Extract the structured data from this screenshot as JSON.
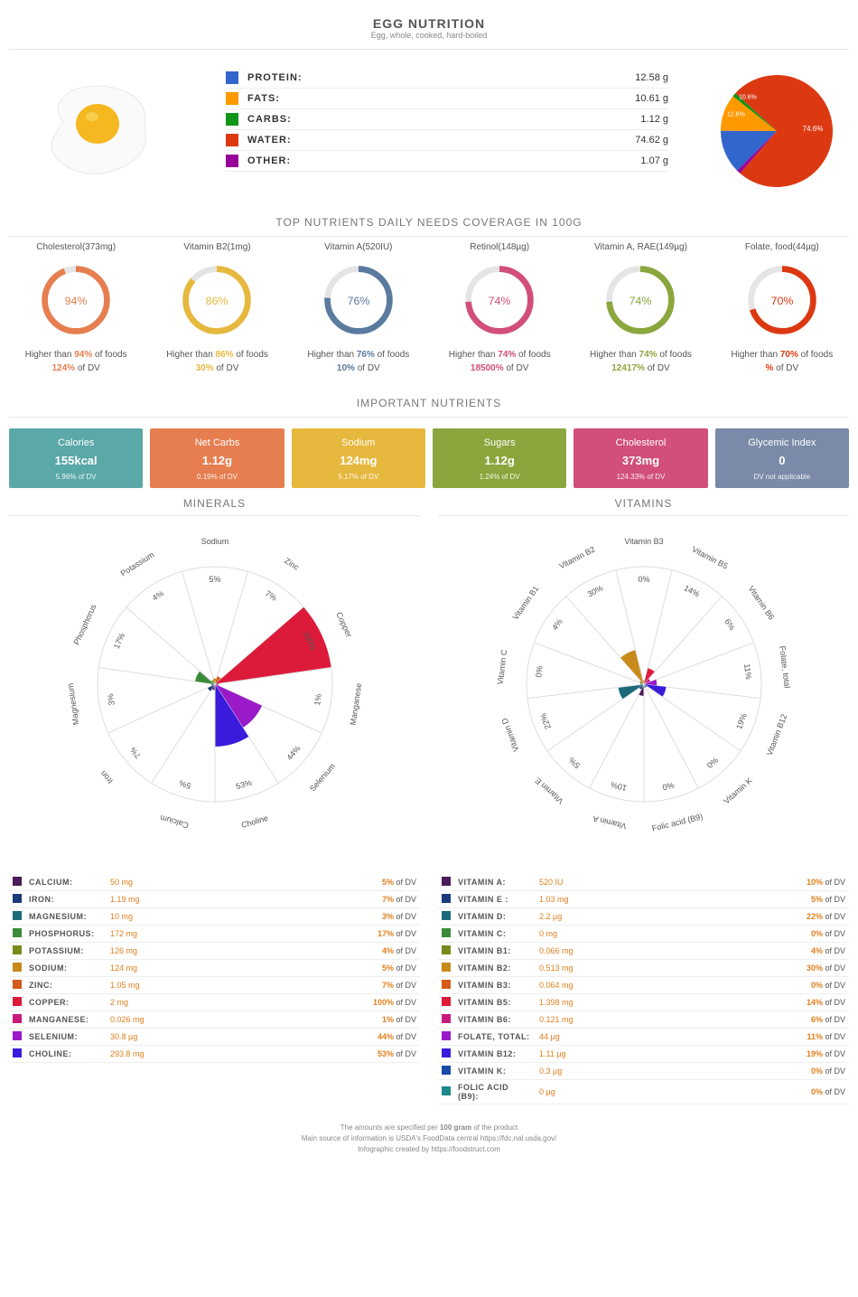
{
  "title": "EGG NUTRITION",
  "subtitle": "Egg, whole, cooked, hard-boiled",
  "macros": [
    {
      "label": "PROTEIN:",
      "value": "12.58 g",
      "color": "#3366cc",
      "pct": 12.6
    },
    {
      "label": "FATS:",
      "value": "10.61 g",
      "color": "#ff9900",
      "pct": 10.6
    },
    {
      "label": "CARBS:",
      "value": "1.12 g",
      "color": "#109618",
      "pct": 1.1
    },
    {
      "label": "WATER:",
      "value": "74.62 g",
      "color": "#dc3912",
      "pct": 74.6
    },
    {
      "label": "OTHER:",
      "value": "1.07 g",
      "color": "#990099",
      "pct": 1.1
    }
  ],
  "pie_labels": [
    {
      "text": "10.6%",
      "angle": -42,
      "r": 48,
      "color": "#fff",
      "fs": 7
    },
    {
      "text": "12.6%",
      "angle": -70,
      "r": 48,
      "color": "#fff",
      "fs": 7
    },
    {
      "text": "74.6%",
      "angle": 90,
      "r": 40,
      "color": "#fff",
      "fs": 8
    }
  ],
  "rings_title": "TOP NUTRIENTS DAILY NEEDS COVERAGE IN 100G",
  "rings": [
    {
      "label": "Cholesterol(373mg)",
      "pct": 94,
      "color": "#e67e50",
      "dv": "124%"
    },
    {
      "label": "Vitamin B2(1mg)",
      "pct": 86,
      "color": "#e6b83d",
      "dv": "30%"
    },
    {
      "label": "Vitamin A(520IU)",
      "pct": 76,
      "color": "#5a7a9e",
      "dv": "10%"
    },
    {
      "label": "Retinol(148µg)",
      "pct": 74,
      "color": "#d14f7a",
      "dv": "18500%"
    },
    {
      "label": "Vitamin A, RAE(149µg)",
      "pct": 74,
      "color": "#8ba63d",
      "dv": "12417%"
    },
    {
      "label": "Folate, food(44µg)",
      "pct": 70,
      "color": "#dc3912",
      "dv": "%"
    }
  ],
  "ring_below_prefix": "Higher than ",
  "ring_below_suffix": " of foods",
  "ring_dv_suffix": " of DV",
  "important_title": "IMPORTANT NUTRIENTS",
  "cards": [
    {
      "title": "Calories",
      "value": "155kcal",
      "sub": "5.96% of DV",
      "bg": "#5aa8a8"
    },
    {
      "title": "Net Carbs",
      "value": "1.12g",
      "sub": "0.19% of DV",
      "bg": "#e67e50"
    },
    {
      "title": "Sodium",
      "value": "124mg",
      "sub": "5.17% of DV",
      "bg": "#e6b83d"
    },
    {
      "title": "Sugars",
      "value": "1.12g",
      "sub": "1.24% of DV",
      "bg": "#8ba63d"
    },
    {
      "title": "Cholesterol",
      "value": "373mg",
      "sub": "124.33% of DV",
      "bg": "#d14f7a"
    },
    {
      "title": "Glycemic Index",
      "value": "0",
      "sub": "DV not applicable",
      "bg": "#7a8aa8"
    }
  ],
  "wheels_title_left": "MINERALS",
  "wheels_title_right": "VITAMINS",
  "wheel_max_radius": 130,
  "wheel_bg": "#ffffff",
  "wheel_border": "#ddd",
  "minerals_wheel": [
    {
      "name": "Calcium",
      "pct": 5,
      "color": "#4a1a5a"
    },
    {
      "name": "Iron",
      "pct": 7,
      "color": "#1a3a7a"
    },
    {
      "name": "Magnesium",
      "pct": 3,
      "color": "#1a6a7a"
    },
    {
      "name": "Phosphorus",
      "pct": 17,
      "color": "#3a8a3a"
    },
    {
      "name": "Potassium",
      "pct": 4,
      "color": "#7a8a1a"
    },
    {
      "name": "Sodium",
      "pct": 5,
      "color": "#c88a1a"
    },
    {
      "name": "Zinc",
      "pct": 7,
      "color": "#d65a1a"
    },
    {
      "name": "Copper",
      "pct": 100,
      "color": "#dc1a3a"
    },
    {
      "name": "Manganese",
      "pct": 1,
      "color": "#c81a7a"
    },
    {
      "name": "Selenium",
      "pct": 44,
      "color": "#9a1ac8"
    },
    {
      "name": "Choline",
      "pct": 53,
      "color": "#3a1adc"
    }
  ],
  "minerals_table": [
    {
      "name": "CALCIUM:",
      "val": "50 mg",
      "dv": "5%",
      "color": "#4a1a5a"
    },
    {
      "name": "IRON:",
      "val": "1.19 mg",
      "dv": "7%",
      "color": "#1a3a7a"
    },
    {
      "name": "MAGNESIUM:",
      "val": "10 mg",
      "dv": "3%",
      "color": "#1a6a7a"
    },
    {
      "name": "PHOSPHORUS:",
      "val": "172 mg",
      "dv": "17%",
      "color": "#3a8a3a"
    },
    {
      "name": "POTASSIUM:",
      "val": "126 mg",
      "dv": "4%",
      "color": "#7a8a1a"
    },
    {
      "name": "SODIUM:",
      "val": "124 mg",
      "dv": "5%",
      "color": "#c88a1a"
    },
    {
      "name": "ZINC:",
      "val": "1.05 mg",
      "dv": "7%",
      "color": "#d65a1a"
    },
    {
      "name": "COPPER:",
      "val": "2 mg",
      "dv": "100%",
      "color": "#dc1a3a"
    },
    {
      "name": "MANGANESE:",
      "val": "0.026 mg",
      "dv": "1%",
      "color": "#c81a7a"
    },
    {
      "name": "SELENIUM:",
      "val": "30.8 µg",
      "dv": "44%",
      "color": "#9a1ac8"
    },
    {
      "name": "CHOLINE:",
      "val": "293.8 mg",
      "dv": "53%",
      "color": "#3a1adc"
    }
  ],
  "vitamins_wheel": [
    {
      "name": "Vitamin A",
      "pct": 10,
      "color": "#4a1a5a"
    },
    {
      "name": "Vitamin E",
      "pct": 5,
      "color": "#1a3a7a"
    },
    {
      "name": "Vitamin D",
      "pct": 22,
      "color": "#1a6a7a"
    },
    {
      "name": "Vitamin C",
      "pct": 0,
      "color": "#3a8a3a"
    },
    {
      "name": "Vitamin B1",
      "pct": 4,
      "color": "#7a8a1a"
    },
    {
      "name": "Vitamin B2",
      "pct": 30,
      "color": "#c88a1a"
    },
    {
      "name": "Vitamin B3",
      "pct": 0,
      "color": "#d65a1a"
    },
    {
      "name": "Vitamin B5",
      "pct": 14,
      "color": "#dc1a3a"
    },
    {
      "name": "Vitamin B6",
      "pct": 6,
      "color": "#c81a7a"
    },
    {
      "name": "Folate, total",
      "pct": 11,
      "color": "#9a1ac8"
    },
    {
      "name": "Vitamin B12",
      "pct": 19,
      "color": "#3a1adc"
    },
    {
      "name": "Vitamin K",
      "pct": 0,
      "color": "#1a4aa8"
    },
    {
      "name": "Folic acid (B9)",
      "pct": 0,
      "color": "#1a8a8a"
    }
  ],
  "vitamins_table": [
    {
      "name": "VITAMIN A:",
      "val": "520 IU",
      "dv": "10%",
      "color": "#4a1a5a"
    },
    {
      "name": "VITAMIN E :",
      "val": "1.03 mg",
      "dv": "5%",
      "color": "#1a3a7a"
    },
    {
      "name": "VITAMIN D:",
      "val": "2.2 µg",
      "dv": "22%",
      "color": "#1a6a7a"
    },
    {
      "name": "VITAMIN C:",
      "val": "0 mg",
      "dv": "0%",
      "color": "#3a8a3a"
    },
    {
      "name": "VITAMIN B1:",
      "val": "0.066 mg",
      "dv": "4%",
      "color": "#7a8a1a"
    },
    {
      "name": "VITAMIN B2:",
      "val": "0.513 mg",
      "dv": "30%",
      "color": "#c88a1a"
    },
    {
      "name": "VITAMIN B3:",
      "val": "0.064 mg",
      "dv": "0%",
      "color": "#d65a1a"
    },
    {
      "name": "VITAMIN B5:",
      "val": "1.398 mg",
      "dv": "14%",
      "color": "#dc1a3a"
    },
    {
      "name": "VITAMIN B6:",
      "val": "0.121 mg",
      "dv": "6%",
      "color": "#c81a7a"
    },
    {
      "name": "FOLATE, TOTAL:",
      "val": "44 µg",
      "dv": "11%",
      "color": "#9a1ac8"
    },
    {
      "name": "VITAMIN B12:",
      "val": "1.11 µg",
      "dv": "19%",
      "color": "#3a1adc"
    },
    {
      "name": "VITAMIN K:",
      "val": "0.3 µg",
      "dv": "0%",
      "color": "#1a4aa8"
    },
    {
      "name": "FOLIC ACID (B9):",
      "val": "0 µg",
      "dv": "0%",
      "color": "#1a8a8a"
    }
  ],
  "dv_suffix": " of DV",
  "footer_lines": [
    "The amounts are specified per 100 gram of the product",
    "Main source of information is USDA's FoodData central https://fdc.nal.usda.gov/",
    "Infographic created by https://foodstruct.com"
  ]
}
